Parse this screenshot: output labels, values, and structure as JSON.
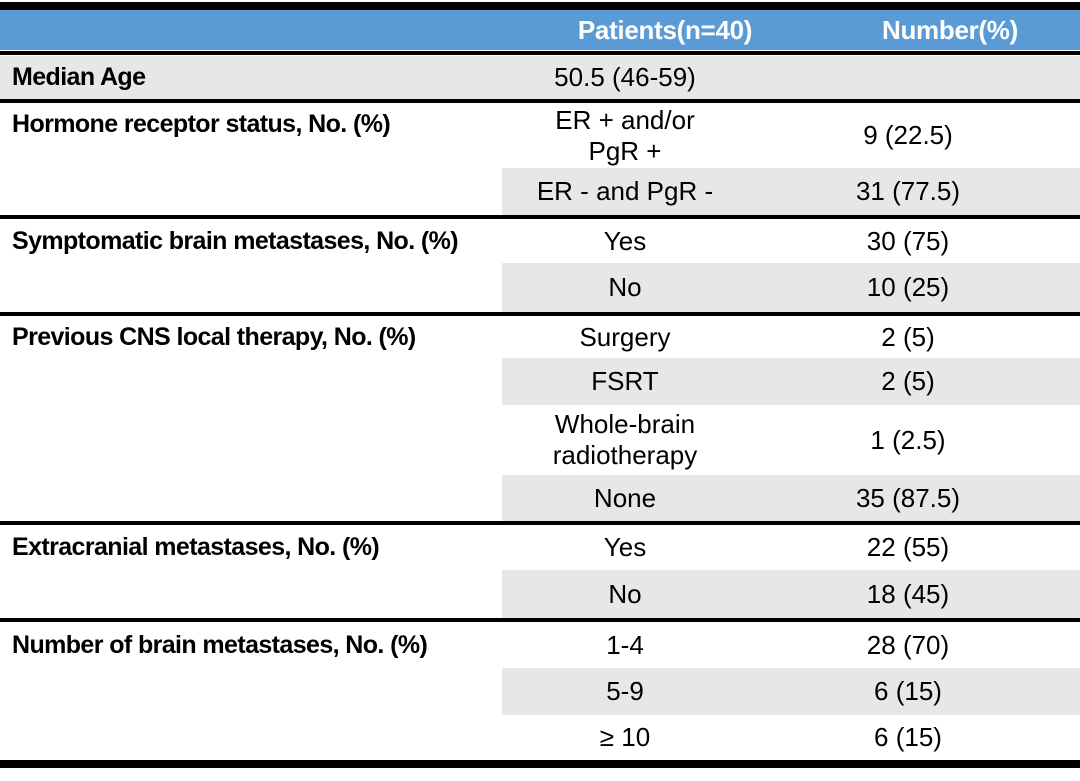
{
  "table": {
    "title": "Patient characteristics table",
    "colors": {
      "header_bg": "#5B9BD5",
      "header_text": "#FFFFFF",
      "row_stripe": "#E8E7E7",
      "border": "#000000",
      "body_text": "#000000"
    },
    "header": {
      "patients_label": "Patients(n=40)",
      "number_label": "Number(%)"
    },
    "sections": [
      {
        "label": "Median Age",
        "rows": [
          {
            "value": "50.5 (46-59)",
            "number": ""
          }
        ]
      },
      {
        "label": "Hormone receptor status, No. (%)",
        "rows": [
          {
            "value": "ER + and/or\nPgR +",
            "number": "9 (22.5)"
          },
          {
            "value": "ER - and PgR -",
            "number": "31 (77.5)"
          }
        ]
      },
      {
        "label": "Symptomatic brain metastases, No. (%)",
        "rows": [
          {
            "value": "Yes",
            "number": "30 (75)"
          },
          {
            "value": "No",
            "number": "10 (25)"
          }
        ]
      },
      {
        "label": "Previous CNS local therapy, No. (%)",
        "rows": [
          {
            "value": "Surgery",
            "number": "2 (5)"
          },
          {
            "value": "FSRT",
            "number": "2 (5)"
          },
          {
            "value": "Whole-brain\nradiotherapy",
            "number": "1 (2.5)"
          },
          {
            "value": "None",
            "number": "35 (87.5)"
          }
        ]
      },
      {
        "label": "Extracranial metastases, No. (%)",
        "rows": [
          {
            "value": "Yes",
            "number": "22 (55)"
          },
          {
            "value": "No",
            "number": "18 (45)"
          }
        ]
      },
      {
        "label": "Number of brain metastases, No. (%)",
        "rows": [
          {
            "value": "1-4",
            "number": "28 (70)"
          },
          {
            "value": "5-9",
            "number": "6 (15)"
          },
          {
            "value": "≥ 10",
            "number": "6 (15)"
          }
        ]
      }
    ]
  }
}
